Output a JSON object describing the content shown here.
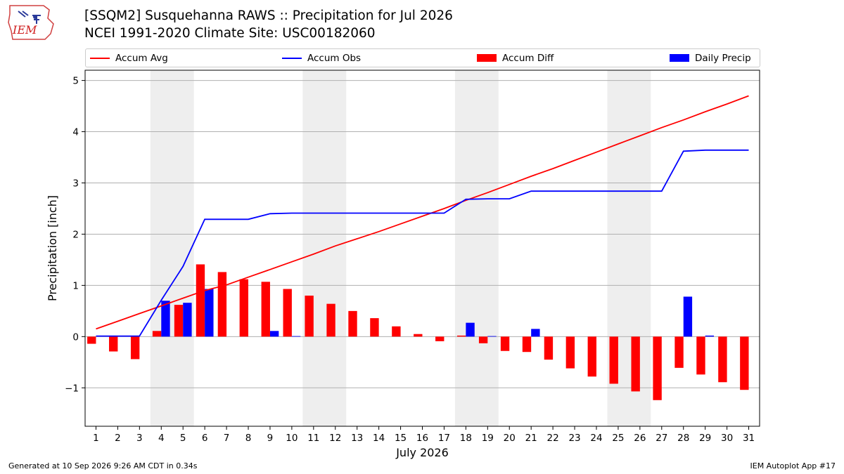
{
  "header": {
    "title_line1": "[SSQM2] Susquehanna RAWS :: Precipitation for Jul 2026",
    "title_line2": "NCEI 1991-2020 Climate Site: USC00182060"
  },
  "logo": {
    "text": "IEM"
  },
  "footer": {
    "generated": "Generated at 10 Sep 2026 9:26 AM CDT in 0.34s",
    "app": "IEM Autoplot App #17"
  },
  "colors": {
    "avg": "#ff0000",
    "obs": "#0000ff",
    "diff": "#ff0000",
    "daily": "#0000ff",
    "weekend_shade": "#eeeeee",
    "grid": "#b0b0b0"
  },
  "legend": [
    {
      "label": "Accum Avg",
      "kind": "line",
      "color": "#ff0000"
    },
    {
      "label": "Accum Obs",
      "kind": "line",
      "color": "#0000ff"
    },
    {
      "label": "Accum Diff",
      "kind": "bar",
      "color": "#ff0000"
    },
    {
      "label": "Daily Precip",
      "kind": "bar",
      "color": "#0000ff"
    }
  ],
  "chart_data": {
    "type": "bar",
    "title": "[SSQM2] Susquehanna RAWS :: Precipitation for Jul 2026",
    "subtitle": "NCEI 1991-2020 Climate Site: USC00182060",
    "xlabel": "July 2026",
    "ylabel": "Precipitation [inch]",
    "ylim": [
      -1.75,
      5.2
    ],
    "yticks": [
      -1,
      0,
      1,
      2,
      3,
      4,
      5
    ],
    "ytick_labels": [
      "−1",
      "0",
      "1",
      "2",
      "3",
      "4",
      "5"
    ],
    "grid": "horizontal",
    "legend_position": "top",
    "x": [
      1,
      2,
      3,
      4,
      5,
      6,
      7,
      8,
      9,
      10,
      11,
      12,
      13,
      14,
      15,
      16,
      17,
      18,
      19,
      20,
      21,
      22,
      23,
      24,
      25,
      26,
      27,
      28,
      29,
      30,
      31
    ],
    "weekend_spans": [
      [
        4,
        5
      ],
      [
        11,
        12
      ],
      [
        18,
        19
      ],
      [
        25,
        26
      ]
    ],
    "series": [
      {
        "name": "Accum Avg",
        "kind": "line",
        "values": [
          0.15,
          0.3,
          0.45,
          0.6,
          0.75,
          0.9,
          1.01,
          1.16,
          1.31,
          1.46,
          1.61,
          1.77,
          1.91,
          2.05,
          2.2,
          2.35,
          2.5,
          2.66,
          2.81,
          2.97,
          3.13,
          3.28,
          3.44,
          3.6,
          3.76,
          3.92,
          4.08,
          4.23,
          4.39,
          4.54,
          4.7
        ]
      },
      {
        "name": "Accum Obs",
        "kind": "line",
        "values": [
          0.01,
          0.01,
          0.01,
          0.71,
          1.37,
          2.29,
          2.29,
          2.29,
          2.4,
          2.41,
          2.41,
          2.41,
          2.41,
          2.41,
          2.41,
          2.41,
          2.41,
          2.68,
          2.69,
          2.69,
          2.84,
          2.84,
          2.84,
          2.84,
          2.84,
          2.84,
          2.84,
          3.62,
          3.64,
          3.64,
          3.64
        ]
      },
      {
        "name": "Accum Diff",
        "kind": "bar",
        "values": [
          -0.14,
          -0.29,
          -0.44,
          0.11,
          0.62,
          1.41,
          1.26,
          1.12,
          1.07,
          0.93,
          0.8,
          0.64,
          0.5,
          0.36,
          0.2,
          0.05,
          -0.09,
          0.02,
          -0.13,
          -0.28,
          -0.3,
          -0.45,
          -0.62,
          -0.78,
          -0.92,
          -1.07,
          -1.24,
          -0.61,
          -0.74,
          -0.89,
          -1.04
        ]
      },
      {
        "name": "Daily Precip",
        "kind": "bar",
        "values": [
          0.01,
          0.0,
          0.0,
          0.7,
          0.66,
          0.93,
          0.0,
          0.0,
          0.11,
          0.01,
          0.0,
          0.0,
          0.0,
          0.0,
          0.0,
          0.0,
          0.0,
          0.27,
          0.01,
          0.0,
          0.15,
          0.0,
          0.0,
          0.0,
          0.0,
          0.0,
          0.0,
          0.78,
          0.02,
          0.0,
          0.0
        ]
      }
    ]
  }
}
